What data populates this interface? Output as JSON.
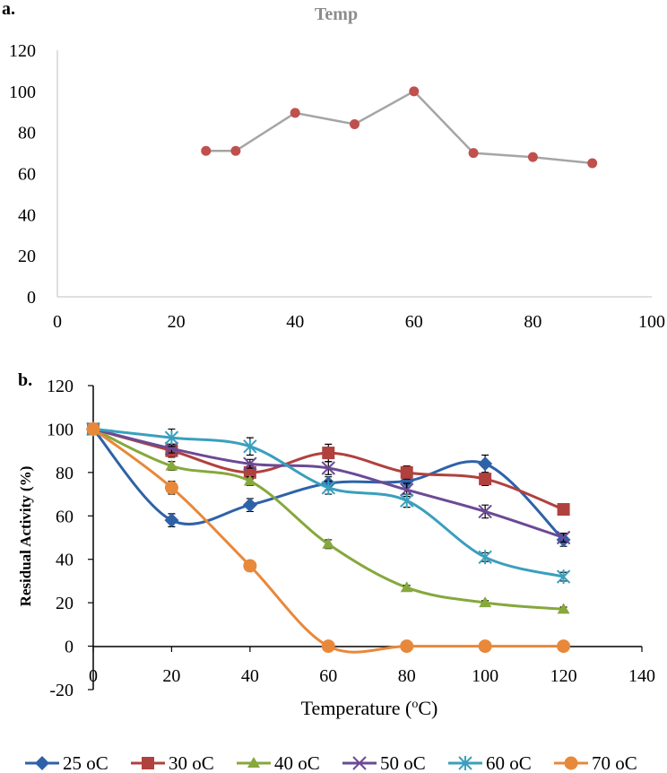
{
  "chart_data": [
    {
      "panel": "a.",
      "type": "line",
      "title": "Temp",
      "xlabel": "",
      "ylabel": "",
      "xlim": [
        0,
        100
      ],
      "ylim": [
        0,
        120
      ],
      "xticks": [
        "0",
        "20",
        "40",
        "60",
        "80",
        "100"
      ],
      "yticks": [
        "0",
        "20",
        "40",
        "60",
        "80",
        "100",
        "120"
      ],
      "grid": false,
      "colors": {
        "line": "#a5a5a5",
        "marker": "#c0504d"
      },
      "series": [
        {
          "name": "Temp",
          "x": [
            25,
            30,
            40,
            50,
            60,
            70,
            80,
            90
          ],
          "values": [
            71,
            71,
            89.5,
            84,
            100,
            70,
            68,
            65
          ]
        }
      ]
    },
    {
      "panel": "b.",
      "type": "line",
      "title": "",
      "xlabel": "Temperature (",
      "xlabel_sup": "o",
      "xlabel_end": "C)",
      "ylabel": "Residual Activity (%)",
      "xlim": [
        0,
        140
      ],
      "ylim": [
        -20,
        120
      ],
      "xticks": [
        "0",
        "20",
        "40",
        "60",
        "80",
        "100",
        "120",
        "140"
      ],
      "yticks": [
        "-20",
        "0",
        "20",
        "40",
        "60",
        "80",
        "100",
        "120"
      ],
      "grid": false,
      "legend_position": "bottom",
      "x": [
        0,
        20,
        40,
        60,
        80,
        100,
        120
      ],
      "series": [
        {
          "name": "25 oC",
          "color": "#2e62a8",
          "marker": "diamond",
          "values": [
            100,
            58,
            65,
            75,
            76,
            84,
            49
          ],
          "errors": [
            0,
            3,
            3,
            3,
            3,
            4,
            3
          ]
        },
        {
          "name": "30 oC",
          "color": "#b0413e",
          "marker": "square",
          "values": [
            100,
            90,
            80,
            89,
            80,
            77,
            63
          ],
          "errors": [
            0,
            3,
            3,
            4,
            3,
            3,
            2
          ]
        },
        {
          "name": "40 oC",
          "color": "#86a83d",
          "marker": "triangle",
          "values": [
            100,
            83,
            76,
            47,
            27,
            20,
            17
          ],
          "errors": [
            0,
            2,
            2,
            2,
            1,
            1,
            1
          ]
        },
        {
          "name": "50 oC",
          "color": "#6b4a95",
          "marker": "x",
          "values": [
            100,
            91,
            84,
            82,
            72,
            62,
            50
          ],
          "errors": [
            0,
            2,
            2,
            3,
            3,
            3,
            2
          ]
        },
        {
          "name": "60 oC",
          "color": "#3a9fbd",
          "marker": "star",
          "values": [
            100,
            96,
            92,
            73,
            67,
            41,
            32
          ],
          "errors": [
            0,
            4,
            4,
            3,
            3,
            2,
            2
          ]
        },
        {
          "name": "70 oC",
          "color": "#e8883a",
          "marker": "circle",
          "values": [
            100,
            73,
            37,
            0,
            0,
            0,
            0
          ],
          "errors": [
            0,
            3,
            0,
            0,
            0,
            0,
            0
          ]
        }
      ]
    }
  ]
}
